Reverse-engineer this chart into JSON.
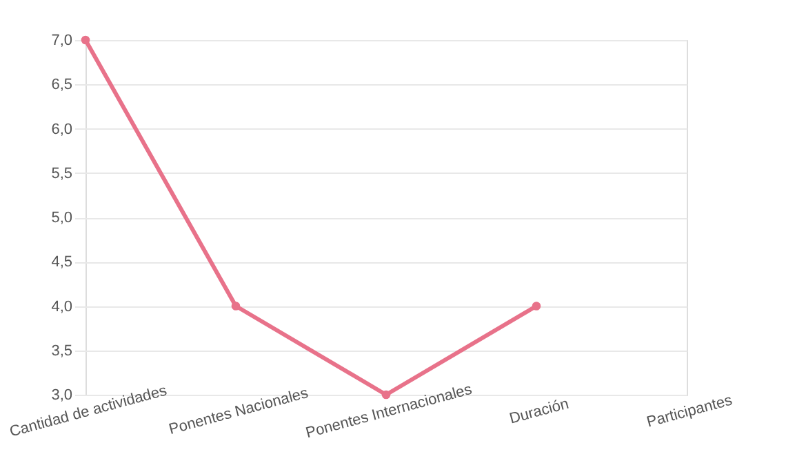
{
  "chart_data": {
    "type": "line",
    "categories": [
      "Cantidad de actividades",
      "Ponentes Nacionales",
      "Ponentes Internacionales",
      "Duración",
      "Participantes"
    ],
    "series": [
      {
        "color": "#e8728a",
        "values": [
          7.0,
          4.0,
          3.0,
          4.0,
          null
        ]
      }
    ],
    "ylim": [
      3.0,
      7.0
    ],
    "yticks": [
      {
        "value": 3.0,
        "label": "3,0"
      },
      {
        "value": 3.5,
        "label": "3,5"
      },
      {
        "value": 4.0,
        "label": "4,0"
      },
      {
        "value": 4.5,
        "label": "4,5"
      },
      {
        "value": 5.0,
        "label": "5,0"
      },
      {
        "value": 5.5,
        "label": "5,5"
      },
      {
        "value": 6.0,
        "label": "6,0"
      },
      {
        "value": 6.5,
        "label": "6,5"
      },
      {
        "value": 7.0,
        "label": "7,0"
      }
    ],
    "grid": "y",
    "marker": "circle",
    "line_style": "solid"
  }
}
